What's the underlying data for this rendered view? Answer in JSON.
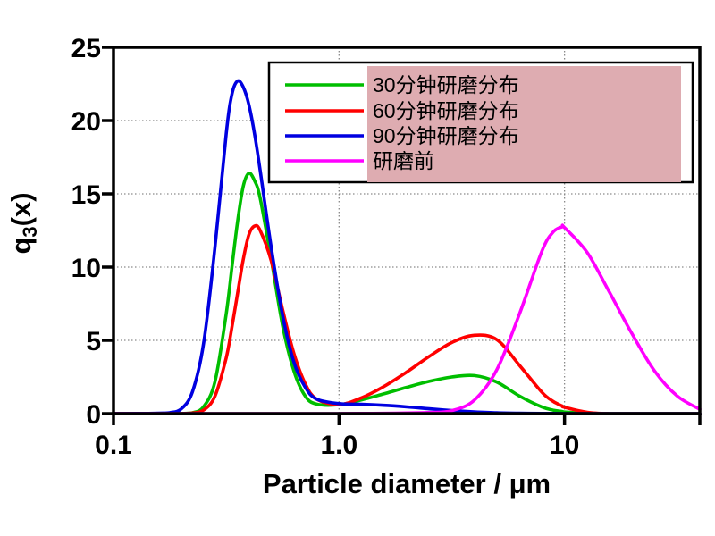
{
  "figure": {
    "background": "#FFFFFF",
    "frame_color": "#000000"
  },
  "chart_data": {
    "type": "line",
    "title": "",
    "x_axis": {
      "label": "Particle diameter / μm",
      "scale": "log",
      "lim": [
        0.1,
        39.8
      ],
      "ticks": [
        {
          "v": 0.1,
          "label": "0.1"
        },
        {
          "v": 1.0,
          "label": "1.0"
        },
        {
          "v": 10,
          "label": "10"
        },
        {
          "v": 39.8,
          "label": ""
        }
      ]
    },
    "y_axis": {
      "label": "q3(x)",
      "label_parts": {
        "base": "q",
        "sub": "3",
        "rest": "(x)"
      },
      "scale": "linear",
      "lim": [
        0,
        25
      ],
      "ticks": [
        {
          "v": 0,
          "label": "0"
        },
        {
          "v": 5,
          "label": "5"
        },
        {
          "v": 10,
          "label": "10"
        },
        {
          "v": 15,
          "label": "15"
        },
        {
          "v": 20,
          "label": "20"
        },
        {
          "v": 25,
          "label": "25"
        }
      ]
    },
    "gridlines": {
      "x": [
        1.0,
        10
      ],
      "y": [
        5,
        10,
        15,
        20
      ],
      "color": "#8A8A8A",
      "style": "dotted"
    },
    "x": [
      0.1,
      0.126,
      0.158,
      0.178,
      0.2,
      0.224,
      0.251,
      0.282,
      0.316,
      0.335,
      0.355,
      0.376,
      0.398,
      0.422,
      0.447,
      0.501,
      0.562,
      0.631,
      0.708,
      0.794,
      1.0,
      1.26,
      1.58,
      2.0,
      2.51,
      3.16,
      3.98,
      5.01,
      6.31,
      7.94,
      8.91,
      9.77,
      10.0,
      12.6,
      15.8,
      20.0,
      25.1,
      31.6,
      39.8
    ],
    "series": [
      {
        "id": "mill-30min",
        "label": "30分钟研磨分布",
        "color": "#00BE00",
        "peak_summary": {
          "peak1": {
            "x": 0.4,
            "y": 16.4
          },
          "peak2": {
            "x": 4.0,
            "y": 2.6
          }
        },
        "values": [
          0,
          0,
          0,
          0,
          0.01,
          0.06,
          0.47,
          2.2,
          6.8,
          10.0,
          13.1,
          15.5,
          16.4,
          15.9,
          14.7,
          10.5,
          6.0,
          2.9,
          1.2,
          0.65,
          0.61,
          0.94,
          1.35,
          1.8,
          2.2,
          2.5,
          2.6,
          2.15,
          1.2,
          0.45,
          0.24,
          0.14,
          0.11,
          0.02,
          0,
          0,
          0,
          0,
          0
        ]
      },
      {
        "id": "mill-60min",
        "label": "60分钟研磨分布",
        "color": "#FF0000",
        "peak_summary": {
          "peak1": {
            "x": 0.42,
            "y": 12.8
          },
          "peak2": {
            "x": 4.4,
            "y": 5.4
          }
        },
        "values": [
          0,
          0,
          0,
          0,
          0,
          0.04,
          0.24,
          1.2,
          3.8,
          5.9,
          8.2,
          10.5,
          12.2,
          12.8,
          12.5,
          10.4,
          7.1,
          4.1,
          2.05,
          1.0,
          0.62,
          1.08,
          1.85,
          2.85,
          3.9,
          4.85,
          5.35,
          5.05,
          3.3,
          1.45,
          0.83,
          0.52,
          0.43,
          0.09,
          0,
          0,
          0,
          0,
          0
        ]
      },
      {
        "id": "mill-90min",
        "label": "90分钟研磨分布",
        "color": "#0000E0",
        "peak_summary": {
          "peak1": {
            "x": 0.355,
            "y": 22.7
          }
        },
        "values": [
          0,
          0.01,
          0.03,
          0.07,
          0.33,
          1.5,
          4.8,
          11.4,
          19.1,
          21.8,
          22.7,
          22.3,
          21.1,
          19.1,
          16.6,
          11.3,
          6.7,
          3.5,
          1.8,
          1.0,
          0.68,
          0.64,
          0.57,
          0.46,
          0.33,
          0.21,
          0.12,
          0.06,
          0.03,
          0.01,
          0.01,
          0,
          0,
          0,
          0,
          0,
          0,
          0,
          0
        ]
      },
      {
        "id": "before-milling",
        "label": "研磨前",
        "color": "#FF00FF",
        "peak_summary": {
          "peak1": {
            "x": 9.8,
            "y": 12.75
          }
        },
        "values": [
          0,
          0,
          0,
          0,
          0,
          0,
          0,
          0,
          0,
          0,
          0,
          0,
          0,
          0,
          0,
          0,
          0,
          0,
          0,
          0,
          0,
          0.01,
          0.02,
          0.04,
          0.08,
          0.2,
          0.92,
          3.0,
          6.8,
          11.1,
          12.4,
          12.75,
          12.7,
          11.0,
          8.3,
          5.4,
          2.9,
          1.2,
          0.3
        ]
      }
    ],
    "legend": {
      "position": "top-right",
      "background": "#FFFFFF",
      "border_color": "#000000",
      "highlight_color": "#DEACB1"
    }
  }
}
